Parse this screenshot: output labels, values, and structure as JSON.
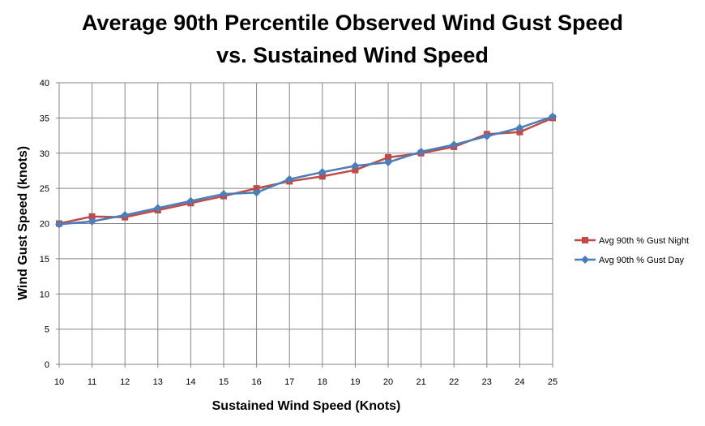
{
  "chart_data": {
    "type": "line",
    "title_line1": "Average 90th Percentile Observed Wind Gust Speed",
    "title_line2": "vs. Sustained Wind Speed",
    "xlabel": "Sustained Wind Speed (Knots)",
    "ylabel": "Wind Gust Speed (knots)",
    "x": [
      10,
      11,
      12,
      13,
      14,
      15,
      16,
      17,
      18,
      19,
      20,
      21,
      22,
      23,
      24,
      25
    ],
    "xlim": [
      10,
      25
    ],
    "ylim": [
      0,
      40
    ],
    "y_ticks": [
      0,
      5,
      10,
      15,
      20,
      25,
      30,
      35,
      40
    ],
    "grid": true,
    "legend_position": "right",
    "series": [
      {
        "name": "Avg 90th % Gust Night",
        "color": "#BE4B48",
        "marker": "square",
        "values": [
          20.0,
          21.0,
          20.9,
          21.9,
          22.9,
          23.9,
          25.0,
          26.0,
          26.7,
          27.6,
          29.4,
          30.0,
          30.9,
          32.7,
          33.0,
          35.0
        ]
      },
      {
        "name": "Avg 90th % Gust Day",
        "color": "#4A7EBB",
        "marker": "diamond",
        "values": [
          19.9,
          20.3,
          21.2,
          22.2,
          23.2,
          24.2,
          24.4,
          26.3,
          27.3,
          28.2,
          28.7,
          30.2,
          31.2,
          32.4,
          33.6,
          35.2
        ]
      }
    ]
  }
}
